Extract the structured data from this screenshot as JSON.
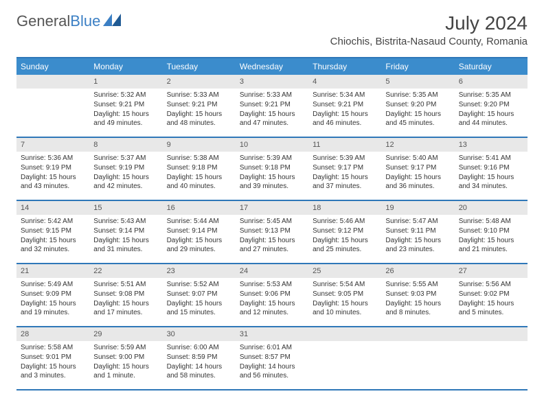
{
  "logo": {
    "text1": "General",
    "text2": "Blue"
  },
  "title": "July 2024",
  "location": "Chiochis, Bistrita-Nasaud County, Romania",
  "colors": {
    "header_bg": "#3b8ccc",
    "border": "#2e77b8",
    "daynum_bg": "#e8e8e8",
    "text": "#333333",
    "title": "#444444",
    "logo_gray": "#555555",
    "logo_blue": "#3b7fc4"
  },
  "dayNames": [
    "Sunday",
    "Monday",
    "Tuesday",
    "Wednesday",
    "Thursday",
    "Friday",
    "Saturday"
  ],
  "weeks": [
    [
      {
        "n": "",
        "sr": "",
        "ss": "",
        "dl": ""
      },
      {
        "n": "1",
        "sr": "Sunrise: 5:32 AM",
        "ss": "Sunset: 9:21 PM",
        "dl": "Daylight: 15 hours and 49 minutes."
      },
      {
        "n": "2",
        "sr": "Sunrise: 5:33 AM",
        "ss": "Sunset: 9:21 PM",
        "dl": "Daylight: 15 hours and 48 minutes."
      },
      {
        "n": "3",
        "sr": "Sunrise: 5:33 AM",
        "ss": "Sunset: 9:21 PM",
        "dl": "Daylight: 15 hours and 47 minutes."
      },
      {
        "n": "4",
        "sr": "Sunrise: 5:34 AM",
        "ss": "Sunset: 9:21 PM",
        "dl": "Daylight: 15 hours and 46 minutes."
      },
      {
        "n": "5",
        "sr": "Sunrise: 5:35 AM",
        "ss": "Sunset: 9:20 PM",
        "dl": "Daylight: 15 hours and 45 minutes."
      },
      {
        "n": "6",
        "sr": "Sunrise: 5:35 AM",
        "ss": "Sunset: 9:20 PM",
        "dl": "Daylight: 15 hours and 44 minutes."
      }
    ],
    [
      {
        "n": "7",
        "sr": "Sunrise: 5:36 AM",
        "ss": "Sunset: 9:19 PM",
        "dl": "Daylight: 15 hours and 43 minutes."
      },
      {
        "n": "8",
        "sr": "Sunrise: 5:37 AM",
        "ss": "Sunset: 9:19 PM",
        "dl": "Daylight: 15 hours and 42 minutes."
      },
      {
        "n": "9",
        "sr": "Sunrise: 5:38 AM",
        "ss": "Sunset: 9:18 PM",
        "dl": "Daylight: 15 hours and 40 minutes."
      },
      {
        "n": "10",
        "sr": "Sunrise: 5:39 AM",
        "ss": "Sunset: 9:18 PM",
        "dl": "Daylight: 15 hours and 39 minutes."
      },
      {
        "n": "11",
        "sr": "Sunrise: 5:39 AM",
        "ss": "Sunset: 9:17 PM",
        "dl": "Daylight: 15 hours and 37 minutes."
      },
      {
        "n": "12",
        "sr": "Sunrise: 5:40 AM",
        "ss": "Sunset: 9:17 PM",
        "dl": "Daylight: 15 hours and 36 minutes."
      },
      {
        "n": "13",
        "sr": "Sunrise: 5:41 AM",
        "ss": "Sunset: 9:16 PM",
        "dl": "Daylight: 15 hours and 34 minutes."
      }
    ],
    [
      {
        "n": "14",
        "sr": "Sunrise: 5:42 AM",
        "ss": "Sunset: 9:15 PM",
        "dl": "Daylight: 15 hours and 32 minutes."
      },
      {
        "n": "15",
        "sr": "Sunrise: 5:43 AM",
        "ss": "Sunset: 9:14 PM",
        "dl": "Daylight: 15 hours and 31 minutes."
      },
      {
        "n": "16",
        "sr": "Sunrise: 5:44 AM",
        "ss": "Sunset: 9:14 PM",
        "dl": "Daylight: 15 hours and 29 minutes."
      },
      {
        "n": "17",
        "sr": "Sunrise: 5:45 AM",
        "ss": "Sunset: 9:13 PM",
        "dl": "Daylight: 15 hours and 27 minutes."
      },
      {
        "n": "18",
        "sr": "Sunrise: 5:46 AM",
        "ss": "Sunset: 9:12 PM",
        "dl": "Daylight: 15 hours and 25 minutes."
      },
      {
        "n": "19",
        "sr": "Sunrise: 5:47 AM",
        "ss": "Sunset: 9:11 PM",
        "dl": "Daylight: 15 hours and 23 minutes."
      },
      {
        "n": "20",
        "sr": "Sunrise: 5:48 AM",
        "ss": "Sunset: 9:10 PM",
        "dl": "Daylight: 15 hours and 21 minutes."
      }
    ],
    [
      {
        "n": "21",
        "sr": "Sunrise: 5:49 AM",
        "ss": "Sunset: 9:09 PM",
        "dl": "Daylight: 15 hours and 19 minutes."
      },
      {
        "n": "22",
        "sr": "Sunrise: 5:51 AM",
        "ss": "Sunset: 9:08 PM",
        "dl": "Daylight: 15 hours and 17 minutes."
      },
      {
        "n": "23",
        "sr": "Sunrise: 5:52 AM",
        "ss": "Sunset: 9:07 PM",
        "dl": "Daylight: 15 hours and 15 minutes."
      },
      {
        "n": "24",
        "sr": "Sunrise: 5:53 AM",
        "ss": "Sunset: 9:06 PM",
        "dl": "Daylight: 15 hours and 12 minutes."
      },
      {
        "n": "25",
        "sr": "Sunrise: 5:54 AM",
        "ss": "Sunset: 9:05 PM",
        "dl": "Daylight: 15 hours and 10 minutes."
      },
      {
        "n": "26",
        "sr": "Sunrise: 5:55 AM",
        "ss": "Sunset: 9:03 PM",
        "dl": "Daylight: 15 hours and 8 minutes."
      },
      {
        "n": "27",
        "sr": "Sunrise: 5:56 AM",
        "ss": "Sunset: 9:02 PM",
        "dl": "Daylight: 15 hours and 5 minutes."
      }
    ],
    [
      {
        "n": "28",
        "sr": "Sunrise: 5:58 AM",
        "ss": "Sunset: 9:01 PM",
        "dl": "Daylight: 15 hours and 3 minutes."
      },
      {
        "n": "29",
        "sr": "Sunrise: 5:59 AM",
        "ss": "Sunset: 9:00 PM",
        "dl": "Daylight: 15 hours and 1 minute."
      },
      {
        "n": "30",
        "sr": "Sunrise: 6:00 AM",
        "ss": "Sunset: 8:59 PM",
        "dl": "Daylight: 14 hours and 58 minutes."
      },
      {
        "n": "31",
        "sr": "Sunrise: 6:01 AM",
        "ss": "Sunset: 8:57 PM",
        "dl": "Daylight: 14 hours and 56 minutes."
      },
      {
        "n": "",
        "sr": "",
        "ss": "",
        "dl": ""
      },
      {
        "n": "",
        "sr": "",
        "ss": "",
        "dl": ""
      },
      {
        "n": "",
        "sr": "",
        "ss": "",
        "dl": ""
      }
    ]
  ]
}
